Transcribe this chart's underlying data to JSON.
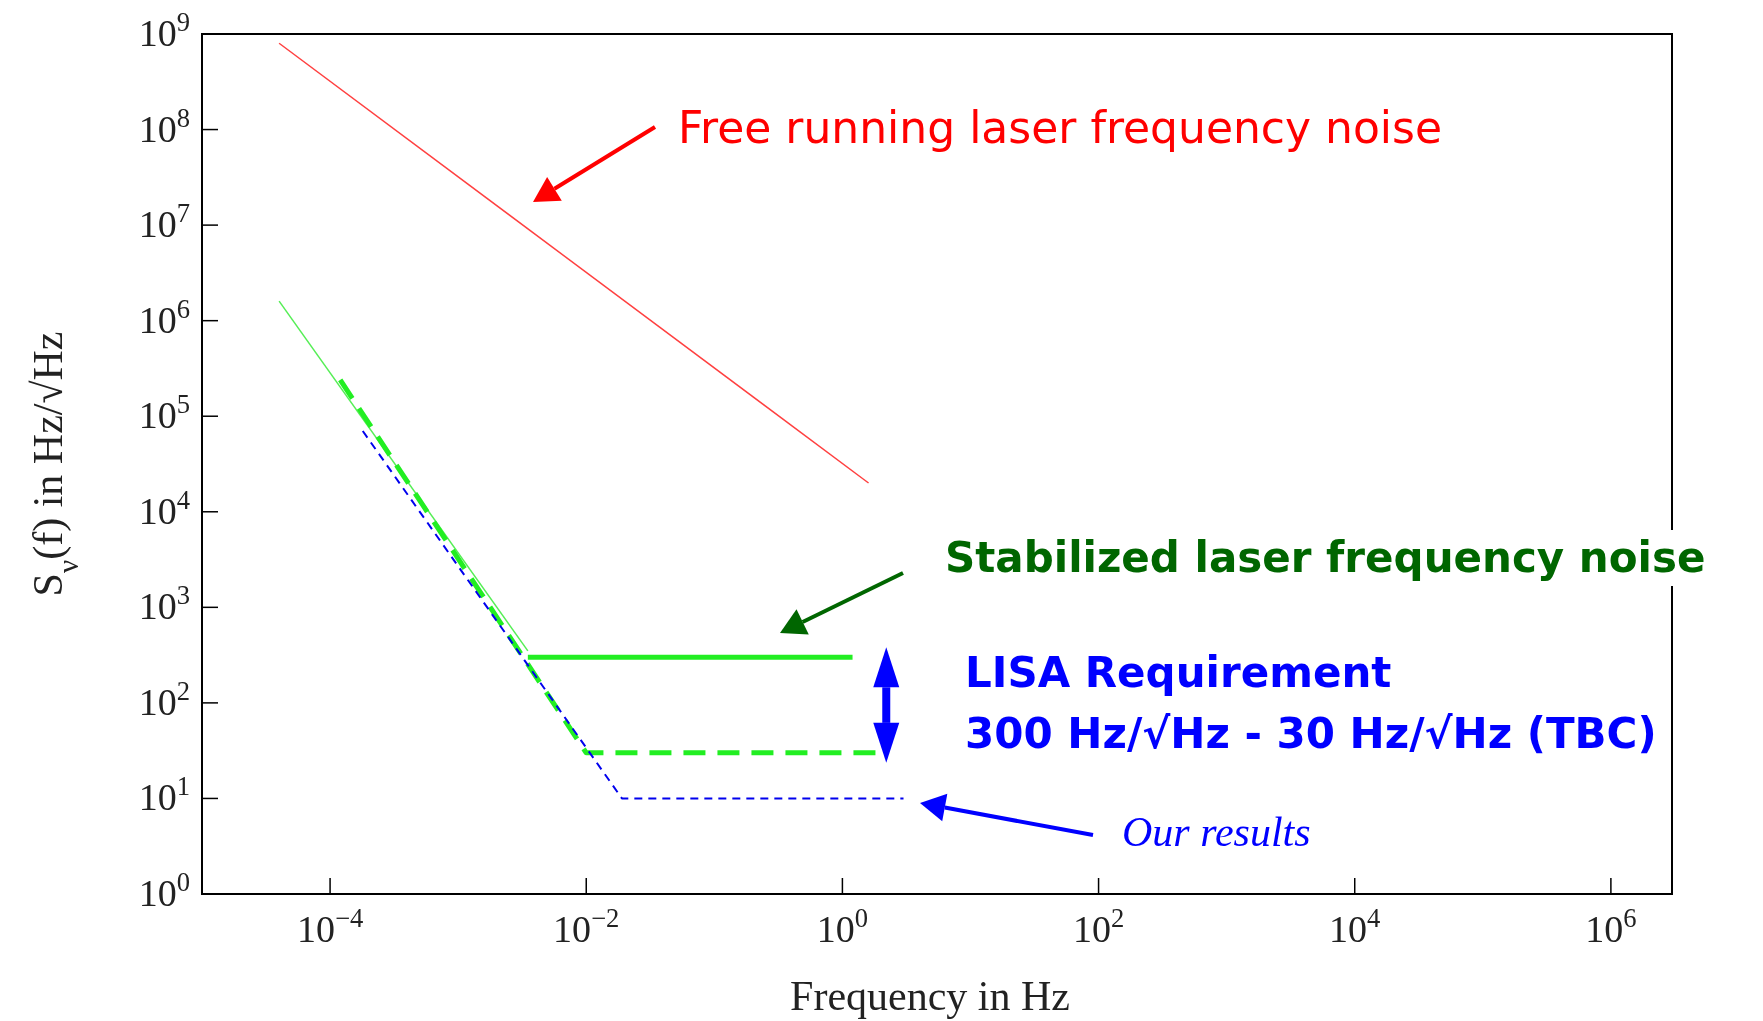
{
  "chart_data": {
    "type": "line",
    "xlabel": "Frequency in Hz",
    "ylabel": "S$_{ν}$(f) in Hz/√Hz",
    "log": "xy",
    "marker": "none",
    "xlim": [
      1e-05,
      3000000.0
    ],
    "ylim": [
      1,
      1000000000.0
    ],
    "xticks": [
      {
        "value": 0.0001,
        "label": "10$^{−4}$"
      },
      {
        "value": 0.01,
        "label": "10$^{−2}$"
      },
      {
        "value": 1,
        "label": "10$^{0}$"
      },
      {
        "value": 100,
        "label": "10$^{2}$"
      },
      {
        "value": 10000,
        "label": "10$^{4}$"
      },
      {
        "value": 1000000,
        "label": "10$^{6}$"
      }
    ],
    "yticks": [
      {
        "value": 1,
        "label": "10$^{0}$"
      },
      {
        "value": 10,
        "label": "10$^{1}$"
      },
      {
        "value": 100,
        "label": "10$^{2}$"
      },
      {
        "value": 1000,
        "label": "10$^{3}$"
      },
      {
        "value": 10000,
        "label": "10$^{4}$"
      },
      {
        "value": 100000,
        "label": "10$^{5}$"
      },
      {
        "value": 1000000,
        "label": "10$^{6}$"
      },
      {
        "value": 10000000,
        "label": "10$^{7}$"
      },
      {
        "value": 100000000,
        "label": "10$^{8}$"
      },
      {
        "value": 1000000000,
        "label": "10$^{9}$"
      }
    ],
    "series": [
      {
        "color": "#ff4040",
        "line_style": "solid",
        "x": [
          4e-05,
          1.6
        ],
        "values": [
          800000000,
          20000
        ]
      },
      {
        "color": "#55ee55",
        "line_style": "solid",
        "x": [
          4e-05,
          0.0035
        ],
        "values": [
          1600000,
          350
        ]
      },
      {
        "color": "#22ee22",
        "line_style": "solid",
        "x": [
          0.0035,
          1.2
        ],
        "values": [
          300,
          300
        ]
      },
      {
        "color": "#22ee22",
        "line_style": "dashed",
        "x": [
          0.00012,
          0.01,
          2
        ],
        "values": [
          240000,
          30,
          30
        ]
      },
      {
        "color": "#0000ee",
        "line_style": "dashed",
        "x": [
          0.00018,
          0.019,
          3
        ],
        "values": [
          70000,
          10,
          10
        ]
      }
    ],
    "annotations": [
      "Free running laser frequency noise",
      "Stabilized laser frequency noise",
      "LISA Requirement",
      "300 Hz/√Hz - 30 Hz/√Hz (TBC)",
      "Our results"
    ]
  }
}
